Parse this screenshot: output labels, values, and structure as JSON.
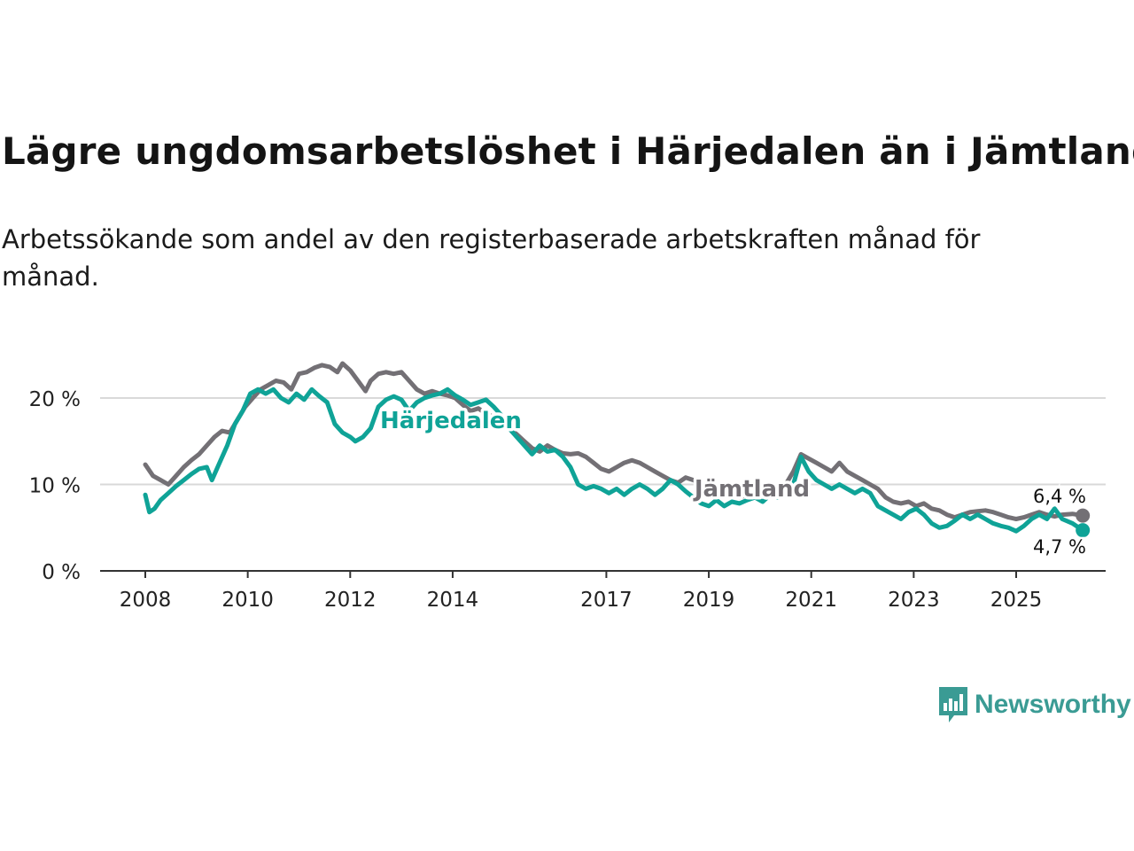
{
  "title": "Lägre ungdomsarbetslöshet i Härjedalen än i Jämtland",
  "subtitle": "Arbetssökande som andel av den registerbaserade arbetskraften månad för månad.",
  "brand": {
    "name": "Newsworthy",
    "color": "#3a9b94"
  },
  "colors": {
    "harjedalen": "#0fa397",
    "jamtland": "#737075",
    "grid": "#d9d9d9",
    "axis": "#333333"
  },
  "chart_data": {
    "type": "line",
    "title": "Lägre ungdomsarbetslöshet i Härjedalen än i Jämtland",
    "xlabel": "",
    "ylabel": "",
    "xlim": [
      2007.7,
      2026.8
    ],
    "ylim": [
      0,
      20
    ],
    "y_ticks": [
      0,
      10,
      20
    ],
    "y_tick_labels": [
      "0 %",
      "10 %",
      "20 %"
    ],
    "x_ticks": [
      2008,
      2010,
      2012,
      2014,
      2017,
      2019,
      2021,
      2023,
      2025
    ],
    "x_tick_labels": [
      "2008",
      "2010",
      "2012",
      "2014",
      "2017",
      "2019",
      "2021",
      "2023",
      "2025"
    ],
    "grid": true,
    "series": [
      {
        "name": "Jämtland",
        "label": "Jämtland",
        "color": "#737075",
        "end_label": "6,4 %",
        "points": [
          [
            2008.0,
            12.3
          ],
          [
            2008.15,
            11.0
          ],
          [
            2008.3,
            10.5
          ],
          [
            2008.45,
            10.0
          ],
          [
            2008.6,
            11.0
          ],
          [
            2008.75,
            12.0
          ],
          [
            2008.9,
            12.8
          ],
          [
            2009.05,
            13.5
          ],
          [
            2009.2,
            14.5
          ],
          [
            2009.35,
            15.5
          ],
          [
            2009.5,
            16.2
          ],
          [
            2009.65,
            16.0
          ],
          [
            2009.8,
            17.5
          ],
          [
            2009.95,
            19.0
          ],
          [
            2010.1,
            20.0
          ],
          [
            2010.25,
            21.0
          ],
          [
            2010.4,
            21.5
          ],
          [
            2010.55,
            22.0
          ],
          [
            2010.7,
            21.8
          ],
          [
            2010.85,
            21.0
          ],
          [
            2011.0,
            22.8
          ],
          [
            2011.15,
            23.0
          ],
          [
            2011.3,
            23.5
          ],
          [
            2011.45,
            23.8
          ],
          [
            2011.6,
            23.6
          ],
          [
            2011.75,
            23.0
          ],
          [
            2011.85,
            24.0
          ],
          [
            2012.0,
            23.2
          ],
          [
            2012.15,
            22.0
          ],
          [
            2012.3,
            20.8
          ],
          [
            2012.4,
            22.0
          ],
          [
            2012.55,
            22.8
          ],
          [
            2012.7,
            23.0
          ],
          [
            2012.85,
            22.8
          ],
          [
            2013.0,
            23.0
          ],
          [
            2013.15,
            22.0
          ],
          [
            2013.3,
            21.0
          ],
          [
            2013.45,
            20.5
          ],
          [
            2013.6,
            20.8
          ],
          [
            2013.75,
            20.5
          ],
          [
            2013.9,
            20.3
          ],
          [
            2014.05,
            20.0
          ],
          [
            2014.2,
            19.2
          ],
          [
            2014.35,
            18.5
          ],
          [
            2014.5,
            18.8
          ],
          [
            2014.65,
            18.2
          ],
          [
            2014.8,
            17.8
          ],
          [
            2014.95,
            17.2
          ],
          [
            2015.1,
            16.5
          ],
          [
            2015.25,
            15.8
          ],
          [
            2015.4,
            15.0
          ],
          [
            2015.55,
            14.2
          ],
          [
            2015.7,
            13.8
          ],
          [
            2015.85,
            14.5
          ],
          [
            2016.0,
            14.0
          ],
          [
            2016.15,
            13.6
          ],
          [
            2016.3,
            13.5
          ],
          [
            2016.45,
            13.6
          ],
          [
            2016.6,
            13.2
          ],
          [
            2016.75,
            12.5
          ],
          [
            2016.9,
            11.8
          ],
          [
            2017.05,
            11.5
          ],
          [
            2017.2,
            12.0
          ],
          [
            2017.35,
            12.5
          ],
          [
            2017.5,
            12.8
          ],
          [
            2017.65,
            12.5
          ],
          [
            2017.8,
            12.0
          ],
          [
            2017.95,
            11.5
          ],
          [
            2018.1,
            11.0
          ],
          [
            2018.25,
            10.5
          ],
          [
            2018.4,
            10.2
          ],
          [
            2018.55,
            10.8
          ],
          [
            2018.7,
            10.5
          ],
          [
            2018.85,
            10.0
          ],
          [
            2019.0,
            9.5
          ],
          [
            2019.15,
            9.0
          ],
          [
            2019.3,
            8.8
          ],
          [
            2019.45,
            9.0
          ],
          [
            2019.6,
            8.5
          ],
          [
            2019.75,
            8.8
          ],
          [
            2019.9,
            9.0
          ],
          [
            2020.05,
            9.2
          ],
          [
            2020.2,
            9.0
          ],
          [
            2020.35,
            9.5
          ],
          [
            2020.5,
            10.0
          ],
          [
            2020.65,
            11.5
          ],
          [
            2020.8,
            13.5
          ],
          [
            2020.95,
            13.0
          ],
          [
            2021.1,
            12.5
          ],
          [
            2021.25,
            12.0
          ],
          [
            2021.4,
            11.5
          ],
          [
            2021.55,
            12.5
          ],
          [
            2021.7,
            11.5
          ],
          [
            2021.85,
            11.0
          ],
          [
            2022.0,
            10.5
          ],
          [
            2022.15,
            10.0
          ],
          [
            2022.3,
            9.5
          ],
          [
            2022.45,
            8.5
          ],
          [
            2022.6,
            8.0
          ],
          [
            2022.75,
            7.8
          ],
          [
            2022.9,
            8.0
          ],
          [
            2023.05,
            7.5
          ],
          [
            2023.2,
            7.8
          ],
          [
            2023.35,
            7.2
          ],
          [
            2023.5,
            7.0
          ],
          [
            2023.65,
            6.5
          ],
          [
            2023.8,
            6.2
          ],
          [
            2023.95,
            6.5
          ],
          [
            2024.1,
            6.8
          ],
          [
            2024.25,
            6.9
          ],
          [
            2024.4,
            7.0
          ],
          [
            2024.55,
            6.8
          ],
          [
            2024.7,
            6.5
          ],
          [
            2024.85,
            6.2
          ],
          [
            2025.0,
            6.0
          ],
          [
            2025.15,
            6.2
          ],
          [
            2025.3,
            6.5
          ],
          [
            2025.45,
            6.8
          ],
          [
            2025.6,
            6.5
          ],
          [
            2025.75,
            6.3
          ],
          [
            2025.9,
            6.5
          ],
          [
            2026.1,
            6.6
          ],
          [
            2026.3,
            6.4
          ]
        ]
      },
      {
        "name": "Härjedalen",
        "label": "Härjedalen",
        "color": "#0fa397",
        "end_label": "4,7 %",
        "points": [
          [
            2008.0,
            8.8
          ],
          [
            2008.08,
            6.8
          ],
          [
            2008.18,
            7.2
          ],
          [
            2008.3,
            8.2
          ],
          [
            2008.45,
            9.0
          ],
          [
            2008.6,
            9.8
          ],
          [
            2008.75,
            10.5
          ],
          [
            2008.9,
            11.2
          ],
          [
            2009.05,
            11.8
          ],
          [
            2009.2,
            12.0
          ],
          [
            2009.3,
            10.5
          ],
          [
            2009.45,
            12.5
          ],
          [
            2009.6,
            14.5
          ],
          [
            2009.75,
            17.0
          ],
          [
            2009.9,
            18.5
          ],
          [
            2010.05,
            20.5
          ],
          [
            2010.2,
            21.0
          ],
          [
            2010.35,
            20.5
          ],
          [
            2010.5,
            21.0
          ],
          [
            2010.65,
            20.0
          ],
          [
            2010.8,
            19.5
          ],
          [
            2010.95,
            20.5
          ],
          [
            2011.1,
            19.8
          ],
          [
            2011.25,
            21.0
          ],
          [
            2011.4,
            20.2
          ],
          [
            2011.55,
            19.5
          ],
          [
            2011.7,
            17.0
          ],
          [
            2011.85,
            16.0
          ],
          [
            2012.0,
            15.5
          ],
          [
            2012.1,
            15.0
          ],
          [
            2012.25,
            15.5
          ],
          [
            2012.4,
            16.5
          ],
          [
            2012.55,
            19.0
          ],
          [
            2012.7,
            19.8
          ],
          [
            2012.85,
            20.2
          ],
          [
            2013.0,
            19.8
          ],
          [
            2013.15,
            18.5
          ],
          [
            2013.3,
            19.5
          ],
          [
            2013.45,
            20.0
          ],
          [
            2013.6,
            20.3
          ],
          [
            2013.75,
            20.5
          ],
          [
            2013.9,
            21.0
          ],
          [
            2014.05,
            20.3
          ],
          [
            2014.2,
            19.8
          ],
          [
            2014.35,
            19.2
          ],
          [
            2014.5,
            19.5
          ],
          [
            2014.65,
            19.8
          ],
          [
            2014.8,
            19.0
          ],
          [
            2014.95,
            18.0
          ],
          [
            2015.1,
            16.5
          ],
          [
            2015.25,
            15.5
          ],
          [
            2015.4,
            14.5
          ],
          [
            2015.55,
            13.5
          ],
          [
            2015.7,
            14.5
          ],
          [
            2015.85,
            13.8
          ],
          [
            2016.0,
            14.0
          ],
          [
            2016.15,
            13.2
          ],
          [
            2016.3,
            12.0
          ],
          [
            2016.45,
            10.0
          ],
          [
            2016.6,
            9.5
          ],
          [
            2016.75,
            9.8
          ],
          [
            2016.9,
            9.5
          ],
          [
            2017.05,
            9.0
          ],
          [
            2017.2,
            9.5
          ],
          [
            2017.35,
            8.8
          ],
          [
            2017.5,
            9.5
          ],
          [
            2017.65,
            10.0
          ],
          [
            2017.8,
            9.5
          ],
          [
            2017.95,
            8.8
          ],
          [
            2018.1,
            9.5
          ],
          [
            2018.25,
            10.5
          ],
          [
            2018.4,
            10.0
          ],
          [
            2018.55,
            9.2
          ],
          [
            2018.7,
            8.5
          ],
          [
            2018.85,
            7.8
          ],
          [
            2019.0,
            7.5
          ],
          [
            2019.15,
            8.2
          ],
          [
            2019.3,
            7.5
          ],
          [
            2019.45,
            8.0
          ],
          [
            2019.6,
            7.8
          ],
          [
            2019.75,
            8.2
          ],
          [
            2019.9,
            8.5
          ],
          [
            2020.05,
            8.0
          ],
          [
            2020.2,
            8.8
          ],
          [
            2020.35,
            8.5
          ],
          [
            2020.5,
            9.0
          ],
          [
            2020.65,
            10.0
          ],
          [
            2020.8,
            13.2
          ],
          [
            2020.95,
            11.5
          ],
          [
            2021.1,
            10.5
          ],
          [
            2021.25,
            10.0
          ],
          [
            2021.4,
            9.5
          ],
          [
            2021.55,
            10.0
          ],
          [
            2021.7,
            9.5
          ],
          [
            2021.85,
            9.0
          ],
          [
            2022.0,
            9.5
          ],
          [
            2022.15,
            9.0
          ],
          [
            2022.3,
            7.5
          ],
          [
            2022.45,
            7.0
          ],
          [
            2022.6,
            6.5
          ],
          [
            2022.75,
            6.0
          ],
          [
            2022.9,
            6.8
          ],
          [
            2023.05,
            7.2
          ],
          [
            2023.2,
            6.5
          ],
          [
            2023.35,
            5.5
          ],
          [
            2023.5,
            5.0
          ],
          [
            2023.65,
            5.2
          ],
          [
            2023.8,
            5.8
          ],
          [
            2023.95,
            6.5
          ],
          [
            2024.1,
            6.0
          ],
          [
            2024.25,
            6.5
          ],
          [
            2024.4,
            6.0
          ],
          [
            2024.55,
            5.5
          ],
          [
            2024.7,
            5.2
          ],
          [
            2024.85,
            5.0
          ],
          [
            2025.0,
            4.6
          ],
          [
            2025.15,
            5.2
          ],
          [
            2025.3,
            6.0
          ],
          [
            2025.45,
            6.5
          ],
          [
            2025.6,
            6.0
          ],
          [
            2025.75,
            7.2
          ],
          [
            2025.9,
            6.0
          ],
          [
            2026.1,
            5.5
          ],
          [
            2026.3,
            4.7
          ]
        ]
      }
    ]
  }
}
